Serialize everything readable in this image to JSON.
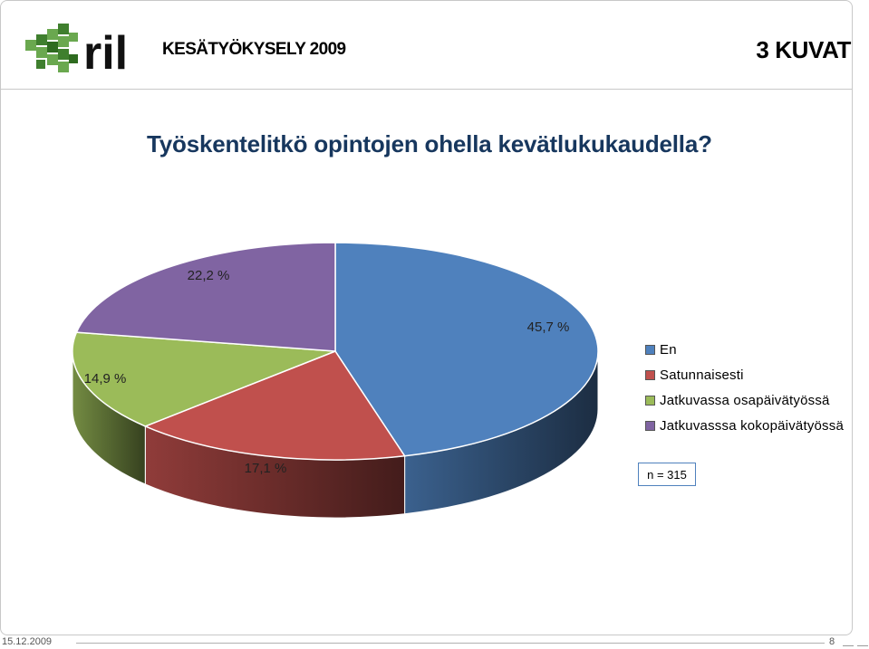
{
  "header": {
    "survey_title": "KESÄTYÖKYSELY 2009",
    "section_title": "3  KUVAT",
    "logo_text": "ril"
  },
  "colors": {
    "accent_title": "#17375e",
    "slice_blue": "#4f81bd",
    "slice_red": "#c0504d",
    "slice_green": "#9bbb59",
    "slice_purple": "#8064a2"
  },
  "chart_data": {
    "type": "pie",
    "title": "Työskentelitkö opintojen ohella kevätlukukaudella?",
    "categories": [
      "En",
      "Satunnaisesti",
      "Jatkuvassa osapäivätyössä",
      "Jatkuvasssa kokopäivätyössä"
    ],
    "values": [
      45.7,
      17.1,
      14.9,
      22.2
    ],
    "data_labels": [
      "45,7 %",
      "17,1 %",
      "14,9 %",
      "22,2 %"
    ],
    "colors": [
      "#4f81bd",
      "#c0504d",
      "#9bbb59",
      "#8064a2"
    ],
    "legend_position": "right",
    "style": "3d"
  },
  "note": "n = 315",
  "footer": {
    "date": "15.12.2009",
    "page": "8"
  }
}
